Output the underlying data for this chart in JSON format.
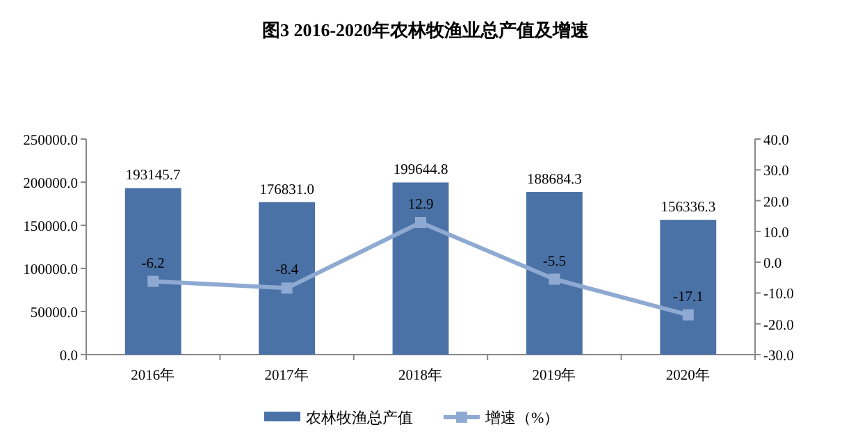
{
  "chart_data": {
    "type": "bar",
    "title": "图3 2016-2020年农林牧渔业总产值及增速",
    "categories": [
      "2016年",
      "2017年",
      "2018年",
      "2019年",
      "2020年"
    ],
    "series": [
      {
        "name": "农林牧渔总产值",
        "color": "#4a72a6",
        "values": [
          193145.7,
          176831.0,
          199644.8,
          188684.3,
          156336.3
        ],
        "value_labels": [
          "193145.7",
          "176831.0",
          "199644.8",
          "188684.3",
          "156336.3"
        ]
      },
      {
        "name": "增速（%）",
        "type": "line",
        "axis": "y2",
        "color": "#8eaad2",
        "marker": "square",
        "values": [
          -6.2,
          -8.4,
          12.9,
          -5.5,
          -17.1
        ],
        "value_labels": [
          "-6.2",
          "-8.4",
          "12.9",
          "-5.5",
          "-17.1"
        ]
      }
    ],
    "ylim": [
      0,
      250000
    ],
    "yticks": [
      {
        "value": 0,
        "label": "0.0"
      },
      {
        "value": 50000,
        "label": "50000.0"
      },
      {
        "value": 100000,
        "label": "100000.0"
      },
      {
        "value": 150000,
        "label": "150000.0"
      },
      {
        "value": 200000,
        "label": "200000.0"
      },
      {
        "value": 250000,
        "label": "250000.0"
      }
    ],
    "y2lim": [
      -30,
      40
    ],
    "y2ticks": [
      {
        "value": -30,
        "label": "-30.0"
      },
      {
        "value": -20,
        "label": "-20.0"
      },
      {
        "value": -10,
        "label": "-10.0"
      },
      {
        "value": 0,
        "label": "0.0"
      },
      {
        "value": 10,
        "label": "10.0"
      },
      {
        "value": 20,
        "label": "20.0"
      },
      {
        "value": 30,
        "label": "30.0"
      },
      {
        "value": 40,
        "label": "40.0"
      }
    ],
    "legend": "bottom"
  }
}
